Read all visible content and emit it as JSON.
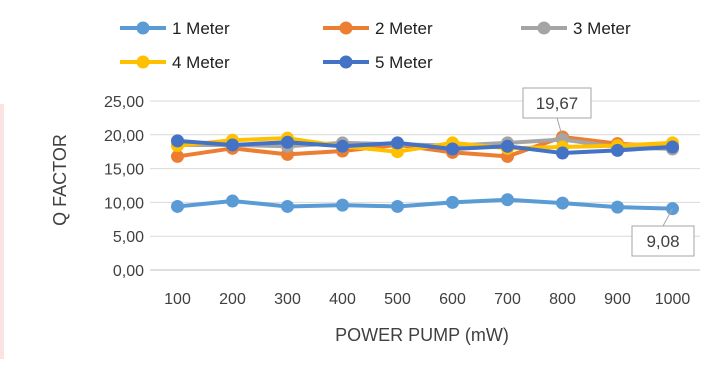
{
  "chart_data": {
    "type": "line",
    "title": "",
    "xlabel": "POWER PUMP (mW)",
    "ylabel": "Q FACTOR",
    "x": [
      "100",
      "200",
      "300",
      "400",
      "500",
      "600",
      "700",
      "800",
      "900",
      "1000"
    ],
    "y_ticks": [
      "0,00",
      "5,00",
      "10,00",
      "15,00",
      "20,00",
      "25,00"
    ],
    "ylim": [
      0,
      25
    ],
    "grid": true,
    "legend_position": "top",
    "series": [
      {
        "name": "1 Meter",
        "color": "#5B9BD5",
        "values": [
          9.4,
          10.2,
          9.4,
          9.6,
          9.4,
          10.0,
          10.4,
          9.9,
          9.3,
          9.08
        ]
      },
      {
        "name": "2 Meter",
        "color": "#ED7D31",
        "values": [
          16.8,
          18.0,
          17.1,
          17.6,
          18.5,
          17.4,
          16.8,
          19.67,
          18.7,
          18.2
        ]
      },
      {
        "name": "3 Meter",
        "color": "#A5A5A5",
        "values": [
          18.5,
          18.5,
          18.3,
          18.8,
          18.6,
          18.4,
          18.8,
          19.3,
          18.2,
          17.9
        ]
      },
      {
        "name": "4 Meter",
        "color": "#FFC000",
        "values": [
          18.4,
          19.2,
          19.5,
          18.3,
          17.5,
          18.8,
          18.0,
          18.2,
          18.4,
          18.8
        ]
      },
      {
        "name": "5 Meter",
        "color": "#4472C4",
        "values": [
          19.1,
          18.5,
          18.9,
          18.3,
          18.8,
          17.9,
          18.3,
          17.3,
          17.7,
          18.2
        ]
      }
    ],
    "annotations": [
      {
        "series": 1,
        "index": 7,
        "text": "19,67"
      },
      {
        "series": 0,
        "index": 9,
        "text": "9,08"
      }
    ]
  }
}
